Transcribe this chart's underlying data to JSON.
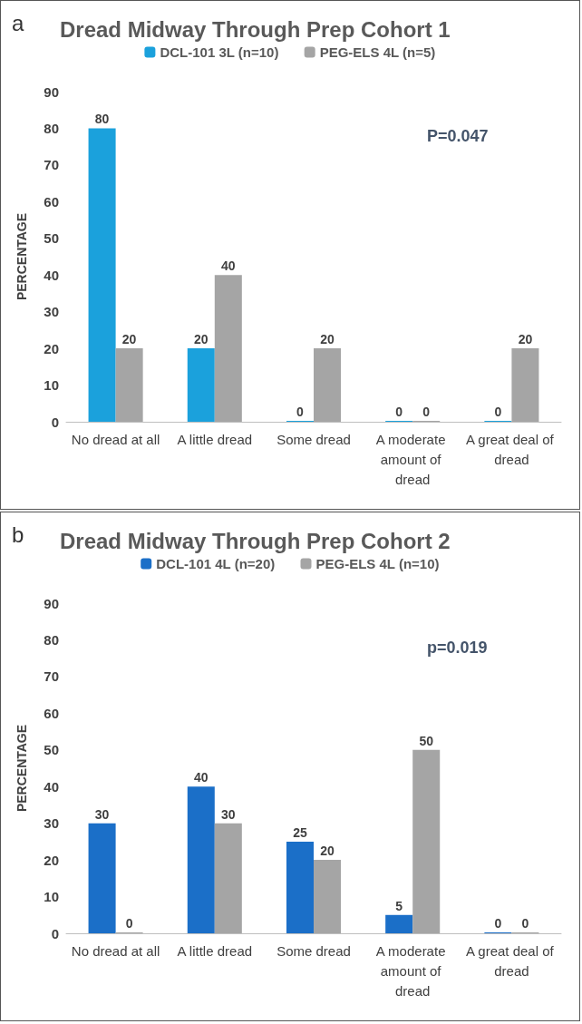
{
  "chart_data": [
    {
      "type": "bar",
      "title": "Dread Midway Through Prep Cohort 1",
      "ylabel": "PERCENTAGE",
      "categories": [
        "No dread at all",
        "A little dread",
        "Some dread",
        "A moderate amount of dread",
        "A great deal of dread"
      ],
      "series": [
        {
          "name": "DCL-101 3L (n=10)",
          "color": "#1ba1dc",
          "values": [
            80,
            20,
            0,
            0,
            0
          ]
        },
        {
          "name": "PEG-ELS 4L (n=5)",
          "color": "#a5a5a5",
          "values": [
            20,
            40,
            20,
            0,
            20
          ]
        }
      ],
      "ylim": [
        0,
        90
      ],
      "yticks": [
        0,
        10,
        20,
        30,
        40,
        50,
        60,
        70,
        80,
        90
      ],
      "grid": false,
      "legend": "top",
      "data_labels": true,
      "annotations": [
        "a",
        "P=0.047"
      ]
    },
    {
      "type": "bar",
      "title": "Dread Midway Through Prep Cohort 2",
      "ylabel": "PERCENTAGE",
      "categories": [
        "No dread at all",
        "A little dread",
        "Some dread",
        "A moderate amount of dread",
        "A great deal of dread"
      ],
      "series": [
        {
          "name": "DCL-101 4L (n=20)",
          "color": "#1b6fc8",
          "values": [
            30,
            40,
            25,
            5,
            0
          ]
        },
        {
          "name": "PEG-ELS 4L (n=10)",
          "color": "#a5a5a5",
          "values": [
            0,
            30,
            20,
            50,
            0
          ]
        }
      ],
      "ylim": [
        0,
        90
      ],
      "yticks": [
        0,
        10,
        20,
        30,
        40,
        50,
        60,
        70,
        80,
        90
      ],
      "grid": false,
      "legend": "top",
      "data_labels": true,
      "annotations": [
        "b",
        "p=0.019"
      ]
    }
  ]
}
